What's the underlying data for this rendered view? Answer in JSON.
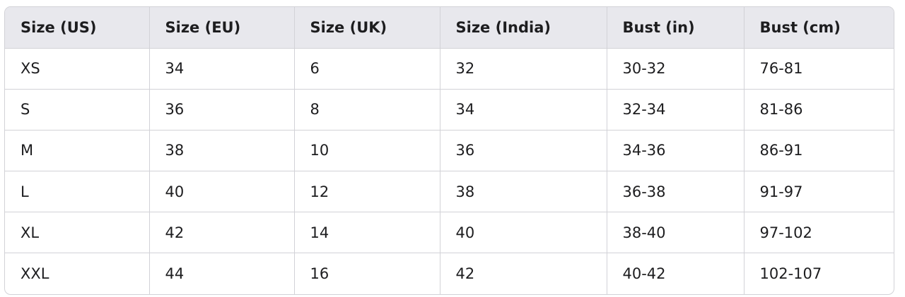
{
  "size_chart": {
    "headers": [
      "Size (US)",
      "Size (EU)",
      "Size (UK)",
      "Size (India)",
      "Bust (in)",
      "Bust (cm)"
    ],
    "rows": [
      [
        "XS",
        "34",
        "6",
        "32",
        "30-32",
        "76-81"
      ],
      [
        "S",
        "36",
        "8",
        "34",
        "32-34",
        "81-86"
      ],
      [
        "M",
        "38",
        "10",
        "36",
        "34-36",
        "86-91"
      ],
      [
        "L",
        "40",
        "12",
        "38",
        "36-38",
        "91-97"
      ],
      [
        "XL",
        "42",
        "14",
        "40",
        "38-40",
        "97-102"
      ],
      [
        "XXL",
        "44",
        "16",
        "42",
        "40-42",
        "102-107"
      ]
    ]
  },
  "colors": {
    "header_bg": "#e8e8ed",
    "border": "#d2d2d7",
    "text": "#1d1d1f"
  }
}
